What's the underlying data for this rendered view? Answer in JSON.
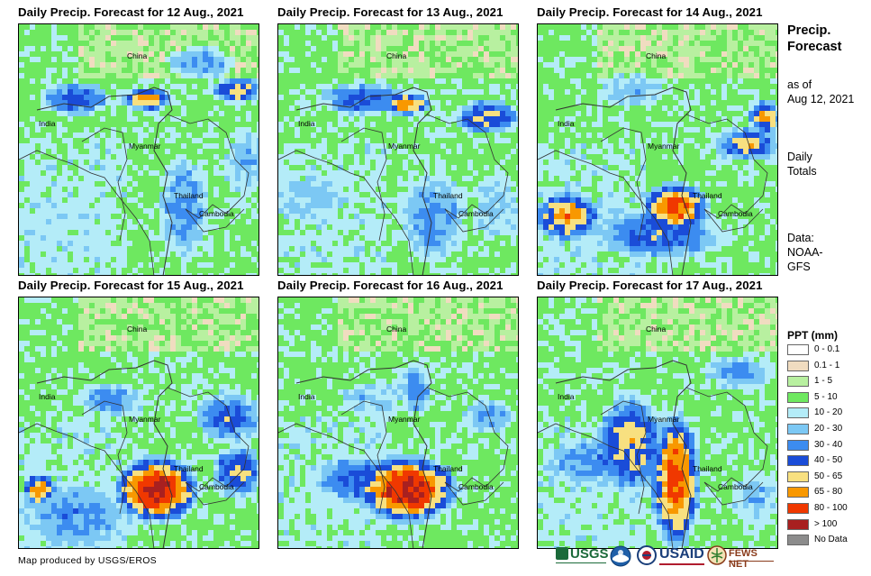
{
  "panels": [
    {
      "title": "Daily Precip. Forecast for 12 Aug., 2021",
      "date": "2021-08-12"
    },
    {
      "title": "Daily Precip. Forecast for 13 Aug., 2021",
      "date": "2021-08-13"
    },
    {
      "title": "Daily Precip. Forecast for 14 Aug., 2021",
      "date": "2021-08-14"
    },
    {
      "title": "Daily Precip. Forecast for 15 Aug., 2021",
      "date": "2021-08-15"
    },
    {
      "title": "Daily Precip. Forecast for 16 Aug., 2021",
      "date": "2021-08-16"
    },
    {
      "title": "Daily Precip. Forecast for 17 Aug., 2021",
      "date": "2021-08-17"
    }
  ],
  "places": {
    "china": "China",
    "india": "India",
    "myanmar": "Myanmar",
    "thailand": "Thailand",
    "cambodia": "Cambodia"
  },
  "sidebar": {
    "title_line1": "Precip.",
    "title_line2": "Forecast",
    "asof_line1": "as of",
    "asof_line2": "Aug 12, 2021",
    "totals_line1": "Daily",
    "totals_line2": "Totals",
    "data_line1": "Data:",
    "data_line2": "NOAA-",
    "data_line3": "GFS"
  },
  "legend": {
    "title": "PPT (mm)",
    "items": [
      {
        "label": "0 - 0.1",
        "color": "#ffffff"
      },
      {
        "label": "0.1 - 1",
        "color": "#f0dcc0"
      },
      {
        "label": "1 - 5",
        "color": "#b8f0a0"
      },
      {
        "label": "5 - 10",
        "color": "#6ee860"
      },
      {
        "label": "10 - 20",
        "color": "#b4ecf8"
      },
      {
        "label": "20 - 30",
        "color": "#7cc8f4"
      },
      {
        "label": "30 - 40",
        "color": "#3c8cf0"
      },
      {
        "label": "40 - 50",
        "color": "#1a4cd8"
      },
      {
        "label": "50 - 65",
        "color": "#f8e080"
      },
      {
        "label": "65 - 80",
        "color": "#f89800"
      },
      {
        "label": "80 - 100",
        "color": "#f03800"
      },
      {
        "label": "> 100",
        "color": "#a82020"
      },
      {
        "label": "No Data",
        "color": "#8c8c8c"
      }
    ]
  },
  "footer": {
    "credit": "Map produced by USGS/EROS",
    "logo_usgs": "USGS",
    "logo_usaid": "USAID",
    "logo_fewsnet": "FEWS NET"
  }
}
